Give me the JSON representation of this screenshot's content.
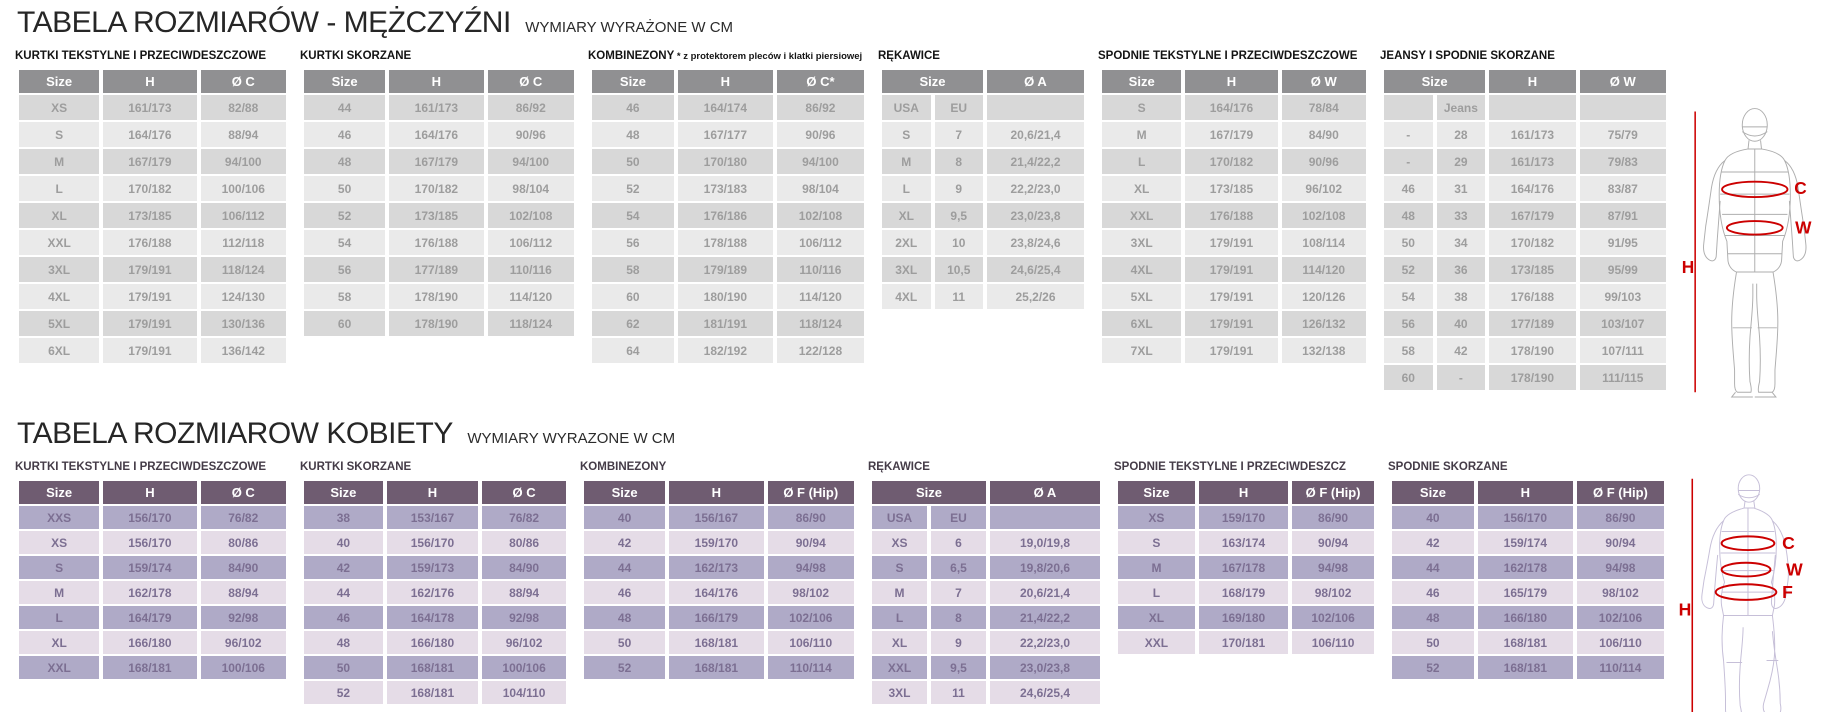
{
  "colors": {
    "men_header": "#909092",
    "men_row_dark": "#d8d8d8",
    "men_row_light": "#eaeaea",
    "men_text": "#9d9d9d",
    "women_header": "#6f5c71",
    "women_row_dark": "#afaac7",
    "women_row_light": "#e5dce7",
    "women_text": "#7c6f92",
    "accent_red": "#cc0000"
  },
  "men": {
    "title": "TABELA ROZMIARÓW - MĘŻCZYŹNI",
    "subtitle": "WYMIARY WYRAŻONE W CM",
    "figure": {
      "height_label": "H",
      "markers": [
        "C",
        "W"
      ]
    },
    "tables": [
      {
        "caption": "KURTKI TEKSTYLNE I PRZECIWDESZCZOWE",
        "columns": [
          {
            "label": "Size",
            "span": 1
          },
          {
            "label": "H",
            "span": 1
          },
          {
            "label": "Ø C",
            "span": 1
          }
        ],
        "rows": [
          [
            "XS",
            "161/173",
            "82/88"
          ],
          [
            "S",
            "164/176",
            "88/94"
          ],
          [
            "M",
            "167/179",
            "94/100"
          ],
          [
            "L",
            "170/182",
            "100/106"
          ],
          [
            "XL",
            "173/185",
            "106/112"
          ],
          [
            "XXL",
            "176/188",
            "112/118"
          ],
          [
            "3XL",
            "179/191",
            "118/124"
          ],
          [
            "4XL",
            "179/191",
            "124/130"
          ],
          [
            "5XL",
            "179/191",
            "130/136"
          ],
          [
            "6XL",
            "179/191",
            "136/142"
          ]
        ]
      },
      {
        "caption": "KURTKI SKÓRZANE",
        "columns": [
          {
            "label": "Size",
            "span": 1
          },
          {
            "label": "H",
            "span": 1
          },
          {
            "label": "Ø C",
            "span": 1
          }
        ],
        "rows": [
          [
            "44",
            "161/173",
            "86/92"
          ],
          [
            "46",
            "164/176",
            "90/96"
          ],
          [
            "48",
            "167/179",
            "94/100"
          ],
          [
            "50",
            "170/182",
            "98/104"
          ],
          [
            "52",
            "173/185",
            "102/108"
          ],
          [
            "54",
            "176/188",
            "106/112"
          ],
          [
            "56",
            "177/189",
            "110/116"
          ],
          [
            "58",
            "178/190",
            "114/120"
          ],
          [
            "60",
            "178/190",
            "118/124"
          ]
        ]
      },
      {
        "caption": "KOMBINEZONY",
        "note": "* z protektorem pleców i klatki piersiowej",
        "columns": [
          {
            "label": "Size",
            "span": 1
          },
          {
            "label": "H",
            "span": 1
          },
          {
            "label": "Ø C*",
            "span": 1
          }
        ],
        "rows": [
          [
            "46",
            "164/174",
            "86/92"
          ],
          [
            "48",
            "167/177",
            "90/96"
          ],
          [
            "50",
            "170/180",
            "94/100"
          ],
          [
            "52",
            "173/183",
            "98/104"
          ],
          [
            "54",
            "176/186",
            "102/108"
          ],
          [
            "56",
            "178/188",
            "106/112"
          ],
          [
            "58",
            "179/189",
            "110/116"
          ],
          [
            "60",
            "180/190",
            "114/120"
          ],
          [
            "62",
            "181/191",
            "118/124"
          ],
          [
            "64",
            "182/192",
            "122/128"
          ]
        ]
      },
      {
        "caption": "RĘKAWICE",
        "columns": [
          {
            "label": "Size",
            "span": 2
          },
          {
            "label": "Ø A",
            "span": 1
          }
        ],
        "rows": [
          [
            "USA",
            "EU",
            ""
          ],
          [
            "S",
            "7",
            "20,6/21,4"
          ],
          [
            "M",
            "8",
            "21,4/22,2"
          ],
          [
            "L",
            "9",
            "22,2/23,0"
          ],
          [
            "XL",
            "9,5",
            "23,0/23,8"
          ],
          [
            "2XL",
            "10",
            "23,8/24,6"
          ],
          [
            "3XL",
            "10,5",
            "24,6/25,4"
          ],
          [
            "4XL",
            "11",
            "25,2/26"
          ]
        ]
      },
      {
        "caption": "SPODNIE TEKSTYLNE I PRZECIWDESZCZOWE",
        "columns": [
          {
            "label": "Size",
            "span": 1
          },
          {
            "label": "H",
            "span": 1
          },
          {
            "label": "Ø W",
            "span": 1
          }
        ],
        "rows": [
          [
            "S",
            "164/176",
            "78/84"
          ],
          [
            "M",
            "167/179",
            "84/90"
          ],
          [
            "L",
            "170/182",
            "90/96"
          ],
          [
            "XL",
            "173/185",
            "96/102"
          ],
          [
            "XXL",
            "176/188",
            "102/108"
          ],
          [
            "3XL",
            "179/191",
            "108/114"
          ],
          [
            "4XL",
            "179/191",
            "114/120"
          ],
          [
            "5XL",
            "179/191",
            "120/126"
          ],
          [
            "6XL",
            "179/191",
            "126/132"
          ],
          [
            "7XL",
            "179/191",
            "132/138"
          ]
        ]
      },
      {
        "caption": "JEANSY I SPODNIE SKÓRZANE",
        "columns": [
          {
            "label": "Size",
            "span": 2
          },
          {
            "label": "H",
            "span": 1
          },
          {
            "label": "Ø W",
            "span": 1
          }
        ],
        "rows": [
          [
            "",
            "Jeans",
            "",
            ""
          ],
          [
            "-",
            "28",
            "161/173",
            "75/79"
          ],
          [
            "-",
            "29",
            "161/173",
            "79/83"
          ],
          [
            "46",
            "31",
            "164/176",
            "83/87"
          ],
          [
            "48",
            "33",
            "167/179",
            "87/91"
          ],
          [
            "50",
            "34",
            "170/182",
            "91/95"
          ],
          [
            "52",
            "36",
            "173/185",
            "95/99"
          ],
          [
            "54",
            "38",
            "176/188",
            "99/103"
          ],
          [
            "56",
            "40",
            "177/189",
            "103/107"
          ],
          [
            "58",
            "42",
            "178/190",
            "107/111"
          ],
          [
            "60",
            "-",
            "178/190",
            "111/115"
          ]
        ]
      }
    ]
  },
  "women": {
    "title": "TABELA ROZMIAROW KOBIETY",
    "subtitle": "WYMIARY WYRAZONE W CM",
    "figure": {
      "height_label": "H",
      "markers": [
        "C",
        "W",
        "F"
      ]
    },
    "tables": [
      {
        "caption": "KURTKI TEKSTYLNE I PRZECIWDESZCZOWE",
        "columns": [
          {
            "label": "Size",
            "span": 1
          },
          {
            "label": "H",
            "span": 1
          },
          {
            "label": "Ø C",
            "span": 1
          }
        ],
        "rows": [
          [
            "XXS",
            "156/170",
            "76/82"
          ],
          [
            "XS",
            "156/170",
            "80/86"
          ],
          [
            "S",
            "159/174",
            "84/90"
          ],
          [
            "M",
            "162/178",
            "88/94"
          ],
          [
            "L",
            "164/179",
            "92/98"
          ],
          [
            "XL",
            "166/180",
            "96/102"
          ],
          [
            "XXL",
            "168/181",
            "100/106"
          ]
        ]
      },
      {
        "caption": "KURTKI SKÓRZANE",
        "columns": [
          {
            "label": "Size",
            "span": 1
          },
          {
            "label": "H",
            "span": 1
          },
          {
            "label": "Ø C",
            "span": 1
          }
        ],
        "rows": [
          [
            "38",
            "153/167",
            "76/82"
          ],
          [
            "40",
            "156/170",
            "80/86"
          ],
          [
            "42",
            "159/173",
            "84/90"
          ],
          [
            "44",
            "162/176",
            "88/94"
          ],
          [
            "46",
            "164/178",
            "92/98"
          ],
          [
            "48",
            "166/180",
            "96/102"
          ],
          [
            "50",
            "168/181",
            "100/106"
          ],
          [
            "52",
            "168/181",
            "104/110"
          ]
        ]
      },
      {
        "caption": "KOMBINEZONY",
        "columns": [
          {
            "label": "Size",
            "span": 1
          },
          {
            "label": "H",
            "span": 1
          },
          {
            "label": "Ø F (Hip)",
            "span": 1
          }
        ],
        "rows": [
          [
            "40",
            "156/167",
            "86/90"
          ],
          [
            "42",
            "159/170",
            "90/94"
          ],
          [
            "44",
            "162/173",
            "94/98"
          ],
          [
            "46",
            "164/176",
            "98/102"
          ],
          [
            "48",
            "166/179",
            "102/106"
          ],
          [
            "50",
            "168/181",
            "106/110"
          ],
          [
            "52",
            "168/181",
            "110/114"
          ]
        ]
      },
      {
        "caption": "RĘKAWICE",
        "columns": [
          {
            "label": "Size",
            "span": 2
          },
          {
            "label": "Ø A",
            "span": 1
          }
        ],
        "rows": [
          [
            "USA",
            "EU",
            ""
          ],
          [
            "XS",
            "6",
            "19,0/19,8"
          ],
          [
            "S",
            "6,5",
            "19,8/20,6"
          ],
          [
            "M",
            "7",
            "20,6/21,4"
          ],
          [
            "L",
            "8",
            "21,4/22,2"
          ],
          [
            "XL",
            "9",
            "22,2/23,0"
          ],
          [
            "XXL",
            "9,5",
            "23,0/23,8"
          ],
          [
            "3XL",
            "11",
            "24,6/25,4"
          ]
        ]
      },
      {
        "caption": "SPODNIE TEKSTYLNE I PRZECIWDESZCZ",
        "columns": [
          {
            "label": "Size",
            "span": 1
          },
          {
            "label": "H",
            "span": 1
          },
          {
            "label": "Ø F (Hip)",
            "span": 1
          }
        ],
        "rows": [
          [
            "XS",
            "159/170",
            "86/90"
          ],
          [
            "S",
            "163/174",
            "90/94"
          ],
          [
            "M",
            "167/178",
            "94/98"
          ],
          [
            "L",
            "168/179",
            "98/102"
          ],
          [
            "XL",
            "169/180",
            "102/106"
          ],
          [
            "XXL",
            "170/181",
            "106/110"
          ]
        ]
      },
      {
        "caption": "SPODNIE SKÓRZANE",
        "columns": [
          {
            "label": "Size",
            "span": 1
          },
          {
            "label": "H",
            "span": 1
          },
          {
            "label": "Ø F (Hip)",
            "span": 1
          }
        ],
        "rows": [
          [
            "40",
            "156/170",
            "86/90"
          ],
          [
            "42",
            "159/174",
            "90/94"
          ],
          [
            "44",
            "162/178",
            "94/98"
          ],
          [
            "46",
            "165/179",
            "98/102"
          ],
          [
            "48",
            "166/180",
            "102/106"
          ],
          [
            "50",
            "168/181",
            "106/110"
          ],
          [
            "52",
            "168/181",
            "110/114"
          ]
        ]
      }
    ]
  }
}
